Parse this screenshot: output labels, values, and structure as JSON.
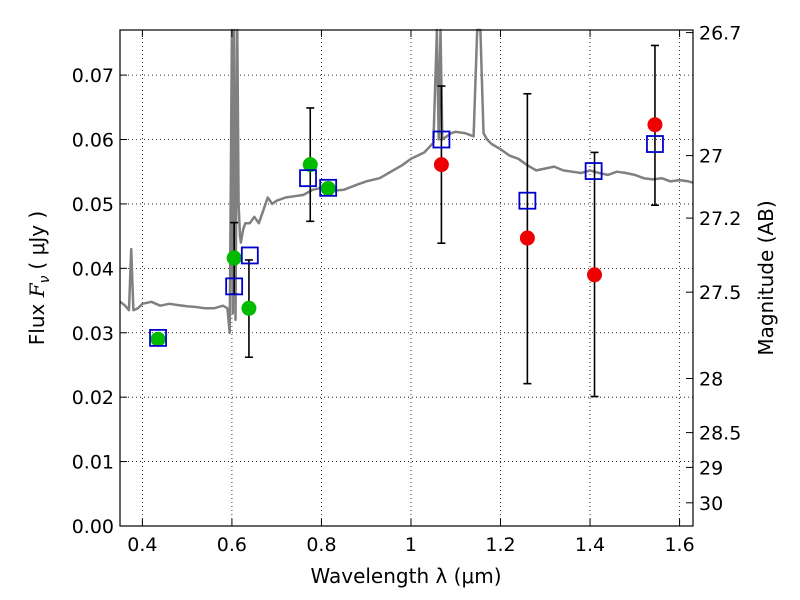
{
  "chart_data": {
    "type": "scatter",
    "xlabel": "Wavelength  λ (μm)",
    "ylabel_prefix": "Flux ",
    "ylabel_symbol": "F",
    "ylabel_sub": "ν",
    "ylabel_unit": "(  μJy )",
    "y2label": "Magnitude (AB)",
    "xlim": [
      0.35,
      1.63
    ],
    "ylim": [
      0.0,
      0.077
    ],
    "xticks": [
      0.4,
      0.6,
      0.8,
      1.0,
      1.2,
      1.4,
      1.6
    ],
    "xtick_labels": [
      "0.4",
      "0.6",
      "0.8",
      "1",
      "1.2",
      "1.4",
      "1.6"
    ],
    "yticks": [
      0.0,
      0.01,
      0.02,
      0.03,
      0.04,
      0.05,
      0.06,
      0.07
    ],
    "ytick_labels": [
      "0.00",
      "0.01",
      "0.02",
      "0.03",
      "0.04",
      "0.05",
      "0.06",
      "0.07"
    ],
    "y2ticks": [
      {
        "label": "26.7",
        "flux": 0.0766
      },
      {
        "label": "27",
        "flux": 0.0575
      },
      {
        "label": "27.2",
        "flux": 0.0478
      },
      {
        "label": "27.5",
        "flux": 0.0363
      },
      {
        "label": "28",
        "flux": 0.0229
      },
      {
        "label": "28.5",
        "flux": 0.0145
      },
      {
        "label": "29",
        "flux": 0.0091
      },
      {
        "label": "30",
        "flux": 0.0036
      }
    ],
    "grid": true,
    "series": [
      {
        "marker": "circle",
        "color": "#00bb00",
        "x": [
          0.435,
          0.605,
          0.638,
          0.775,
          0.815
        ],
        "y": [
          0.029,
          0.0416,
          0.0338,
          0.0561,
          0.0524
        ]
      },
      {
        "marker": "circle",
        "color": "#ee0000",
        "x": [
          1.068,
          1.26,
          1.41,
          1.545
        ],
        "y": [
          0.0561,
          0.0447,
          0.039,
          0.0623
        ]
      },
      {
        "marker": "open-square",
        "color": "#0000cc",
        "x": [
          0.435,
          0.605,
          0.64,
          0.77,
          0.815,
          1.068,
          1.26,
          1.408,
          1.545
        ],
        "y": [
          0.0292,
          0.0372,
          0.042,
          0.054,
          0.0525,
          0.06,
          0.0505,
          0.0551,
          0.0593
        ]
      },
      {
        "type": "errorbar",
        "color": "#000000",
        "x": [
          0.605,
          0.638,
          0.775,
          1.068,
          1.26,
          1.41,
          1.545
        ],
        "y": [
          0.0416,
          0.0338,
          0.0561,
          0.0561,
          0.0447,
          0.039,
          0.0623
        ],
        "yerr_low": [
          0.036,
          0.0262,
          0.0473,
          0.0439,
          0.0221,
          0.0201,
          0.0498
        ],
        "yerr_high": [
          0.0471,
          0.0413,
          0.0649,
          0.0683,
          0.0671,
          0.058,
          0.0746
        ]
      },
      {
        "type": "line",
        "color": "#808080",
        "x": [
          0.35,
          0.36,
          0.37,
          0.375,
          0.38,
          0.39,
          0.4,
          0.42,
          0.44,
          0.46,
          0.48,
          0.5,
          0.52,
          0.54,
          0.56,
          0.58,
          0.59,
          0.595,
          0.6,
          0.602,
          0.605,
          0.608,
          0.612,
          0.615,
          0.618,
          0.62,
          0.625,
          0.63,
          0.64,
          0.65,
          0.66,
          0.67,
          0.68,
          0.69,
          0.7,
          0.72,
          0.74,
          0.76,
          0.78,
          0.8,
          0.82,
          0.85,
          0.88,
          0.9,
          0.93,
          0.95,
          0.98,
          1.0,
          1.03,
          1.05,
          1.058,
          1.062,
          1.066,
          1.07,
          1.08,
          1.09,
          1.1,
          1.12,
          1.14,
          1.148,
          1.155,
          1.162,
          1.17,
          1.18,
          1.2,
          1.22,
          1.24,
          1.26,
          1.28,
          1.3,
          1.32,
          1.34,
          1.36,
          1.38,
          1.4,
          1.42,
          1.44,
          1.46,
          1.48,
          1.5,
          1.52,
          1.54,
          1.56,
          1.58,
          1.6,
          1.62,
          1.63
        ],
        "y": [
          0.0348,
          0.0343,
          0.0335,
          0.043,
          0.0335,
          0.0338,
          0.0345,
          0.0348,
          0.0342,
          0.0345,
          0.0343,
          0.0341,
          0.034,
          0.0338,
          0.0338,
          0.0342,
          0.0338,
          0.03,
          0.077,
          0.033,
          0.077,
          0.032,
          0.077,
          0.05,
          0.045,
          0.044,
          0.046,
          0.047,
          0.047,
          0.048,
          0.047,
          0.049,
          0.051,
          0.05,
          0.0505,
          0.051,
          0.0512,
          0.0514,
          0.0522,
          0.0525,
          0.052,
          0.0522,
          0.053,
          0.0535,
          0.054,
          0.0548,
          0.056,
          0.057,
          0.058,
          0.0595,
          0.077,
          0.06,
          0.077,
          0.06,
          0.0605,
          0.061,
          0.0612,
          0.061,
          0.0605,
          0.077,
          0.077,
          0.061,
          0.06,
          0.0593,
          0.0585,
          0.0575,
          0.057,
          0.056,
          0.0552,
          0.0555,
          0.0558,
          0.0552,
          0.055,
          0.0548,
          0.0552,
          0.0548,
          0.0545,
          0.055,
          0.0548,
          0.0545,
          0.054,
          0.0538,
          0.054,
          0.0535,
          0.0537,
          0.0535,
          0.0533
        ]
      }
    ]
  }
}
